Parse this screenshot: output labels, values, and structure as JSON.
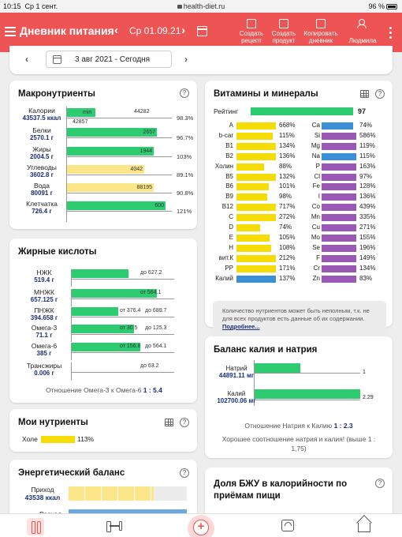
{
  "status": {
    "time": "10:15",
    "date": "Ср 1 сент.",
    "url": "health-diet.ru",
    "battery": "96 %"
  },
  "appbar": {
    "title": "Дневник питания",
    "date": "Ср 01.09.21",
    "prev": "‹",
    "next": "›",
    "buttons": [
      {
        "l1": "Создать",
        "l2": "рецепт"
      },
      {
        "l1": "Создать",
        "l2": "продукт"
      },
      {
        "l1": "Копировать",
        "l2": "дневник"
      },
      {
        "l1": "",
        "l2": "Людмила"
      }
    ]
  },
  "subheader": {
    "date_label": "3 авг 2021 - Сегодня",
    "prev": "‹",
    "next": "›"
  },
  "macros": {
    "title": "Макронутриенты",
    "help": "?",
    "rows": [
      {
        "name": "Калории",
        "value": "43537.5 ккал",
        "bar_pct": 0.27,
        "bar_text": "min",
        "target": "44282",
        "min": "42857",
        "pct": "98.3%",
        "color": "green"
      },
      {
        "name": "Белки",
        "value": "2570.1 г",
        "bar_pct": 0.85,
        "bar_text": "2657",
        "pct": "96.7%",
        "color": "green"
      },
      {
        "name": "Жиры",
        "value": "2004.5 г",
        "bar_pct": 0.82,
        "bar_text": "1944",
        "pct": "103%",
        "color": "green"
      },
      {
        "name": "Углеводы",
        "value": "3602.8 г",
        "bar_pct": 0.73,
        "bar_text": "4042",
        "pct": "89.1%",
        "color": "yellow"
      },
      {
        "name": "Вода",
        "value": "80091 г",
        "bar_pct": 0.82,
        "bar_text": "88195",
        "pct": "90.8%",
        "color": "yellow"
      },
      {
        "name": "Клетчатка",
        "value": "726.4 г",
        "bar_pct": 0.93,
        "bar_text": "600",
        "pct": "121%",
        "color": "green"
      }
    ]
  },
  "fats": {
    "title": "Жирные кислоты",
    "rows": [
      {
        "name": "НЖК",
        "value": "519.4 г",
        "bar_pct": 0.56,
        "limit": "до 627.2",
        "color": "green"
      },
      {
        "name": "МНЖК",
        "value": "657.125 г",
        "bar_pct": 0.84,
        "limit": "от 564.1",
        "color": "green"
      },
      {
        "name": "ПНЖК",
        "value": "394.658 г",
        "bar_pct": 0.46,
        "min": "от 376.4",
        "limit": "до 689.7",
        "color": "green"
      },
      {
        "name": "Омега-3",
        "value": "71.1 г",
        "bar_pct": 0.62,
        "min": "от 30.5",
        "limit": "до 125.3",
        "color": "green"
      },
      {
        "name": "Омега-6",
        "value": "385 г",
        "bar_pct": 0.68,
        "min": "от 156.8",
        "limit": "до 564.1",
        "color": "green"
      },
      {
        "name": "Трансжиры",
        "value": "0.006 г",
        "bar_pct": 0,
        "limit": "до 63.2",
        "color": "green"
      }
    ],
    "ratio_label": "Отношение Омега-3 к Омега-6",
    "ratio_value": "1 : 5.4"
  },
  "my_nutrients": {
    "title": "Мои нутриенты",
    "rows": [
      {
        "name": "Холе",
        "pct": "113%",
        "bar_pct": 0.78,
        "color": "yellow"
      }
    ]
  },
  "energy": {
    "title": "Энергетический баланс",
    "rows": [
      {
        "name": "Приход",
        "value": "43538 ккал",
        "bar_pct": 0.72,
        "color": "#fde68a"
      },
      {
        "name": "Расход",
        "value": "",
        "bar_pct": 1.0,
        "color": "#6fa8dc"
      }
    ]
  },
  "vitamins": {
    "title": "Витамины и минералы",
    "rating_label": "Рейтинг",
    "rating_value": "97",
    "rating_pct": 0.97,
    "left": [
      {
        "name": "A",
        "pct": "668%",
        "bar_pct": 1.0,
        "color": "yellow"
      },
      {
        "name": "b-car",
        "pct": "115%",
        "bar_pct": 0.92,
        "color": "yellow"
      },
      {
        "name": "B1",
        "pct": "134%",
        "bar_pct": 1.0,
        "color": "yellow"
      },
      {
        "name": "B2",
        "pct": "136%",
        "bar_pct": 1.0,
        "color": "yellow"
      },
      {
        "name": "Холин",
        "pct": "88%",
        "bar_pct": 0.7,
        "color": "yellow"
      },
      {
        "name": "B5",
        "pct": "132%",
        "bar_pct": 1.0,
        "color": "yellow"
      },
      {
        "name": "B6",
        "pct": "101%",
        "bar_pct": 0.82,
        "color": "yellow"
      },
      {
        "name": "B9",
        "pct": "98%",
        "bar_pct": 0.78,
        "color": "yellow"
      },
      {
        "name": "B12",
        "pct": "717%",
        "bar_pct": 1.0,
        "color": "yellow"
      },
      {
        "name": "C",
        "pct": "272%",
        "bar_pct": 1.0,
        "color": "yellow"
      },
      {
        "name": "D",
        "pct": "74%",
        "bar_pct": 0.6,
        "color": "yellow"
      },
      {
        "name": "E",
        "pct": "105%",
        "bar_pct": 0.84,
        "color": "yellow"
      },
      {
        "name": "H",
        "pct": "108%",
        "bar_pct": 0.87,
        "color": "yellow"
      },
      {
        "name": "вит.К",
        "pct": "212%",
        "bar_pct": 1.0,
        "color": "yellow"
      },
      {
        "name": "PP",
        "pct": "171%",
        "bar_pct": 1.0,
        "color": "yellow"
      },
      {
        "name": "Калий",
        "pct": "137%",
        "bar_pct": 1.0,
        "color": "blue"
      }
    ],
    "right": [
      {
        "name": "Ca",
        "pct": "74%",
        "bar_pct": 0.92,
        "color": "blue"
      },
      {
        "name": "Si",
        "pct": "586%",
        "bar_pct": 1.0,
        "color": "purple"
      },
      {
        "name": "Mg",
        "pct": "119%",
        "bar_pct": 1.0,
        "color": "purple"
      },
      {
        "name": "Na",
        "pct": "115%",
        "bar_pct": 1.0,
        "color": "blue"
      },
      {
        "name": "P",
        "pct": "163%",
        "bar_pct": 1.0,
        "color": "purple"
      },
      {
        "name": "Cl",
        "pct": "97%",
        "bar_pct": 1.0,
        "color": "purple"
      },
      {
        "name": "Fe",
        "pct": "128%",
        "bar_pct": 1.0,
        "color": "purple"
      },
      {
        "name": "I",
        "pct": "136%",
        "bar_pct": 1.0,
        "color": "purple"
      },
      {
        "name": "Co",
        "pct": "439%",
        "bar_pct": 1.0,
        "color": "purple"
      },
      {
        "name": "Mn",
        "pct": "335%",
        "bar_pct": 1.0,
        "color": "purple"
      },
      {
        "name": "Cu",
        "pct": "271%",
        "bar_pct": 1.0,
        "color": "purple"
      },
      {
        "name": "Mo",
        "pct": "155%",
        "bar_pct": 1.0,
        "color": "purple"
      },
      {
        "name": "Se",
        "pct": "196%",
        "bar_pct": 1.0,
        "color": "purple"
      },
      {
        "name": "F",
        "pct": "149%",
        "bar_pct": 1.0,
        "color": "purple"
      },
      {
        "name": "Cr",
        "pct": "134%",
        "bar_pct": 1.0,
        "color": "purple"
      },
      {
        "name": "Zn",
        "pct": "83%",
        "bar_pct": 1.0,
        "color": "purple"
      }
    ],
    "info_text": "Количество нутриентов может быть неполным, т.к. не для всех продуктов есть данные об их содержании.",
    "info_link": "Подробнее..."
  },
  "kna": {
    "title": "Баланс калия и натрия",
    "rows": [
      {
        "name": "Натрий",
        "value": "44891.11 мг",
        "bar_pct": 0.36,
        "num": "1"
      },
      {
        "name": "Калий",
        "value": "102700.06 мг",
        "bar_pct": 0.82,
        "num": "2.29"
      }
    ],
    "ratio_label": "Отношение Натрия к Калию",
    "ratio_value": "1 : 2.3",
    "note": "Хорошее соотношение натрия и калия! (выше 1 : 1,75)"
  },
  "bju": {
    "title_1": "Доля БЖУ в калорийности по",
    "title_2": "приёмам пищи"
  },
  "colors": {
    "accent": "#ee5454",
    "green": "#2ecc71",
    "yellow": "#f5dc04",
    "light_yellow": "#fde68a",
    "blue": "#3b8fd6",
    "purple": "#9b59b6",
    "navy": "#1c2f7a"
  }
}
